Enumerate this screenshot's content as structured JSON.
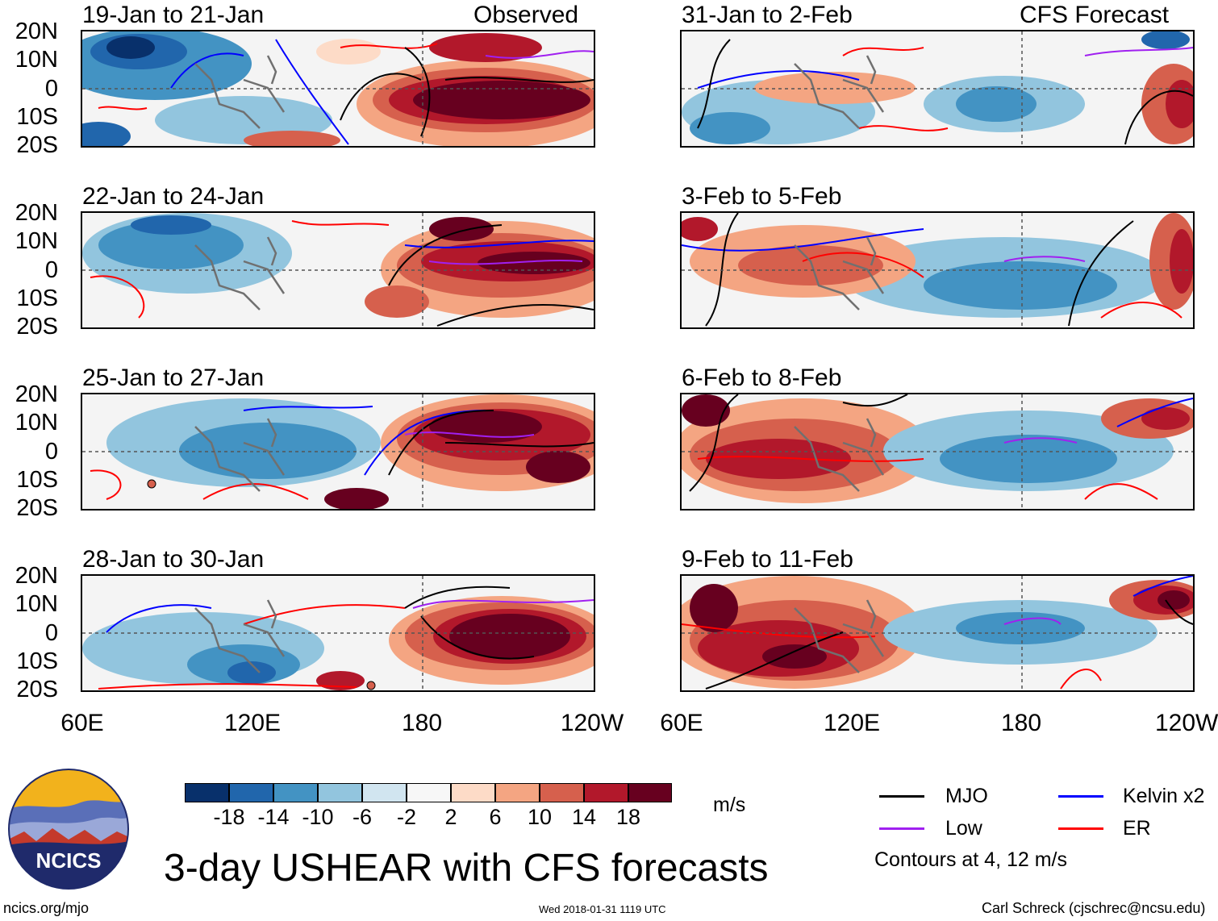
{
  "figure": {
    "main_title": "3-day USHEAR with CFS forecasts",
    "unit": "m/s",
    "observed_label": "Observed",
    "forecast_label": "CFS Forecast",
    "left_footer": "ncics.org/mjo",
    "timestamp": "Wed 2018-01-31 1119 UTC",
    "credit": "Carl Schreck (cjschrec@ncsu.edu)",
    "logo_text": "NCICS"
  },
  "axes": {
    "lat_ticks": [
      "20N",
      "10N",
      "0",
      "10S",
      "20S"
    ],
    "lon_ticks": [
      "60E",
      "120E",
      "180",
      "120W"
    ]
  },
  "panels": {
    "observed": [
      {
        "period": "19-Jan to 21-Jan"
      },
      {
        "period": "22-Jan to 24-Jan"
      },
      {
        "period": "25-Jan to 27-Jan"
      },
      {
        "period": "28-Jan to 30-Jan"
      }
    ],
    "forecast": [
      {
        "period": "31-Jan to 2-Feb"
      },
      {
        "period": "3-Feb to 5-Feb"
      },
      {
        "period": "6-Feb to 8-Feb"
      },
      {
        "period": "9-Feb to 11-Feb"
      }
    ]
  },
  "colorbar": {
    "labels": [
      "-18",
      "-14",
      "-10",
      "-6",
      "-2",
      "2",
      "6",
      "10",
      "14",
      "18"
    ],
    "colors": [
      "#08306b",
      "#2166ac",
      "#4393c3",
      "#92c5de",
      "#d1e5f0",
      "#f7f7f7",
      "#fddbc7",
      "#f4a582",
      "#d6604d",
      "#b2182b",
      "#67001f"
    ]
  },
  "legend": {
    "items": [
      {
        "label": "MJO",
        "color": "#000000"
      },
      {
        "label": "Kelvin x2",
        "color": "#0000ff"
      },
      {
        "label": "Low",
        "color": "#a020f0"
      },
      {
        "label": "ER",
        "color": "#ff0000"
      }
    ],
    "contours_note": "Contours at 4, 12 m/s"
  }
}
